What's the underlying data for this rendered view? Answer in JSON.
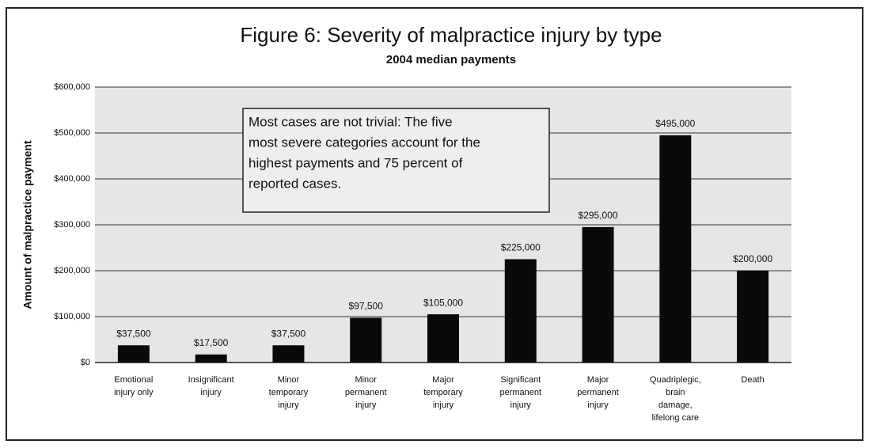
{
  "chart_data": {
    "type": "bar",
    "title": "Figure 6: Severity of malpractice injury by type",
    "subtitle": "2004 median payments",
    "y_label": "Amount of malpractice payment",
    "annotation": [
      "Most cases are not trivial: The five",
      "most severe categories account for the",
      "highest payments and 75 percent of",
      "reported cases."
    ],
    "categories": [
      [
        "Emotional",
        "injury only"
      ],
      [
        "Insignificant",
        "injury"
      ],
      [
        "Minor",
        "temporary",
        "injury"
      ],
      [
        "Minor",
        "permanent",
        "injury"
      ],
      [
        "Major",
        "temporary",
        "injury"
      ],
      [
        "Significant",
        "permanent",
        "injury"
      ],
      [
        "Major",
        "permanent",
        "injury"
      ],
      [
        "Quadriplegic,",
        "brain",
        "damage,",
        "lifelong care"
      ],
      [
        "Death"
      ]
    ],
    "values": [
      37500,
      17500,
      37500,
      97500,
      105000,
      225000,
      295000,
      495000,
      200000
    ],
    "value_labels": [
      "$37,500",
      "$17,500",
      "$37,500",
      "$97,500",
      "$105,000",
      "$225,000",
      "$295,000",
      "$495,000",
      "$200,000"
    ],
    "color": "#0a0a0a",
    "ylim": [
      0,
      600000
    ],
    "yticks": [
      {
        "value": 0,
        "label": "$0"
      },
      {
        "value": 100000,
        "label": "$100,000"
      },
      {
        "value": 200000,
        "label": "$200,000"
      },
      {
        "value": 300000,
        "label": "$300,000"
      },
      {
        "value": 400000,
        "label": "$400,000"
      },
      {
        "value": 500000,
        "label": "$500,000"
      },
      {
        "value": 600000,
        "label": "$600,000"
      }
    ],
    "grid": true
  }
}
